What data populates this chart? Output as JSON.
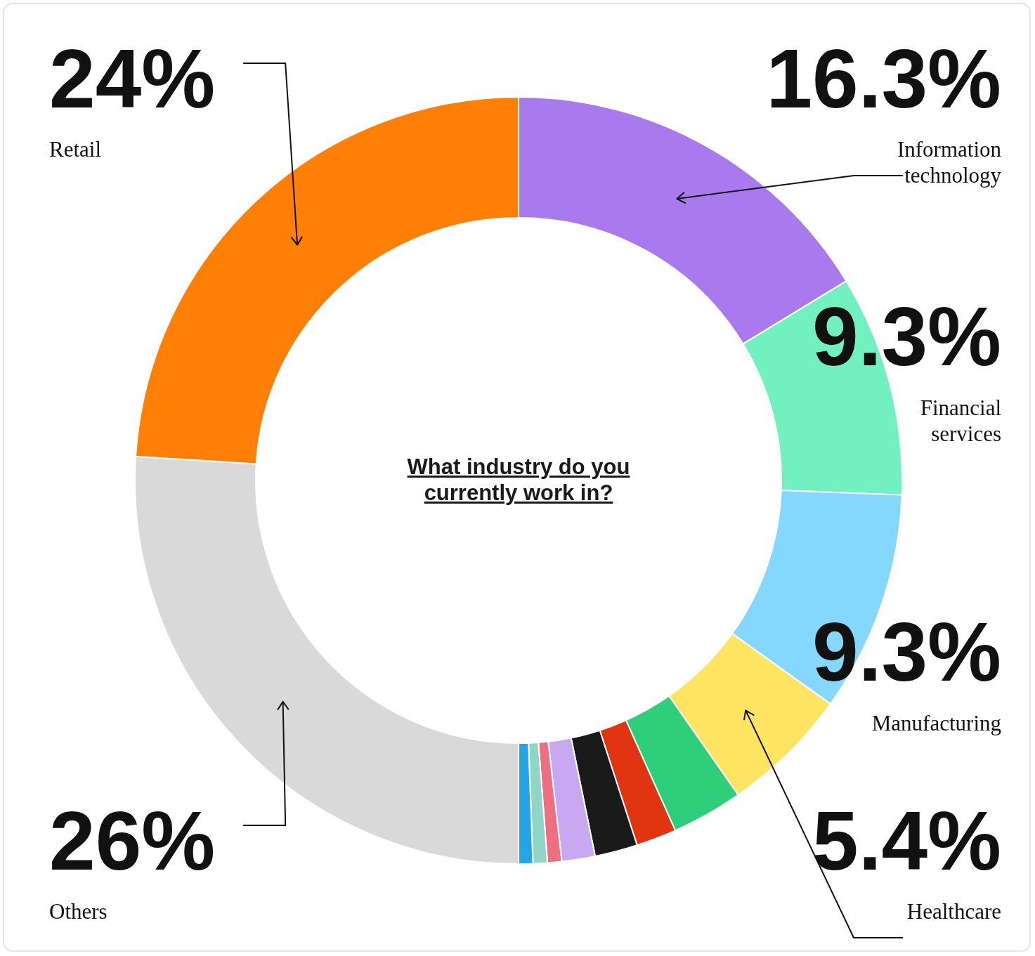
{
  "chart_data": {
    "type": "donut",
    "title": "What industry do you currently work in?",
    "categories": [
      "Information technology",
      "Financial services",
      "Manufacturing",
      "Healthcare",
      null,
      null,
      null,
      null,
      null,
      null,
      null,
      "Others",
      "Retail"
    ],
    "values": [
      16.3,
      9.3,
      9.3,
      5.4,
      3.0,
      1.7,
      1.8,
      1.4,
      0.6,
      0.6,
      0.6,
      26,
      24
    ],
    "value_labels": [
      "16.3%",
      "9.3%",
      "9.3%",
      "5.4%",
      null,
      null,
      null,
      null,
      null,
      null,
      null,
      "26%",
      "24%"
    ],
    "colors": [
      "#a97aed",
      "#72f1c0",
      "#84d8fd",
      "#ffe461",
      "#2ecf7a",
      "#e13512",
      "#1a1a1a",
      "#c8a8f0",
      "#ee6f80",
      "#8fd6c9",
      "#24a6e6",
      "#d9d9d9",
      "#ff7f07"
    ],
    "legend": false
  }
}
